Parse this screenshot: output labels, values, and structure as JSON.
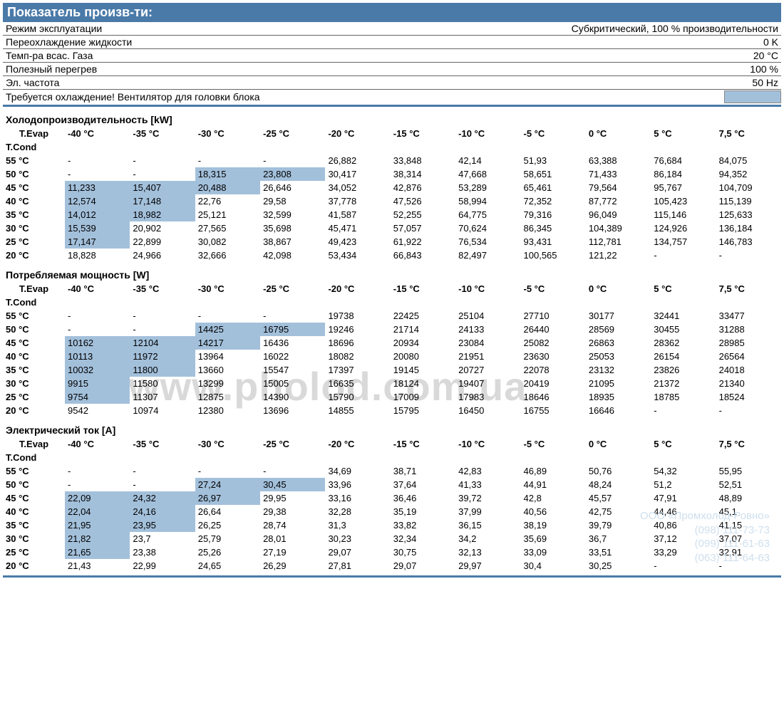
{
  "header": {
    "title": "Показатель произв-ти:"
  },
  "params": [
    {
      "label": "Режим эксплуатации",
      "value": "Субкритический, 100 % производительности"
    },
    {
      "label": "Переохлаждение жидкости",
      "value": "0 K"
    },
    {
      "label": "Темп-ра всас. Газа",
      "value": "20 °C"
    },
    {
      "label": "Полезный перегрев",
      "value": "100 %"
    },
    {
      "label": "Эл. частота",
      "value": "50 Hz"
    }
  ],
  "cooling_note": "Требуется охлаждение! Вентилятор для головки блока",
  "columns": [
    "-40 °C",
    "-35 °C",
    "-30 °C",
    "-25 °C",
    "-20 °C",
    "-15 °C",
    "-10 °C",
    "-5 °C",
    "0 °C",
    "5 °C",
    "7,5 °C"
  ],
  "row_labels": [
    "55 °C",
    "50 °C",
    "45 °C",
    "40 °C",
    "35 °C",
    "30 °C",
    "25 °C",
    "20 °C"
  ],
  "axis": {
    "evap": "T.Evap",
    "cond": "T.Cond"
  },
  "highlight_color": "#a3c0db",
  "sections": [
    {
      "title": "Холодопроизводительность [kW]",
      "rows": [
        [
          {
            "v": "-"
          },
          {
            "v": "-"
          },
          {
            "v": "-"
          },
          {
            "v": "-"
          },
          {
            "v": "26,882"
          },
          {
            "v": "33,848"
          },
          {
            "v": "42,14"
          },
          {
            "v": "51,93"
          },
          {
            "v": "63,388"
          },
          {
            "v": "76,684"
          },
          {
            "v": "84,075"
          }
        ],
        [
          {
            "v": "-"
          },
          {
            "v": "-"
          },
          {
            "v": "18,315",
            "hl": true
          },
          {
            "v": "23,808",
            "hl": true
          },
          {
            "v": "30,417"
          },
          {
            "v": "38,314"
          },
          {
            "v": "47,668"
          },
          {
            "v": "58,651"
          },
          {
            "v": "71,433"
          },
          {
            "v": "86,184"
          },
          {
            "v": "94,352"
          }
        ],
        [
          {
            "v": "11,233",
            "hl": true
          },
          {
            "v": "15,407",
            "hl": true
          },
          {
            "v": "20,488",
            "hl": true
          },
          {
            "v": "26,646"
          },
          {
            "v": "34,052"
          },
          {
            "v": "42,876"
          },
          {
            "v": "53,289"
          },
          {
            "v": "65,461"
          },
          {
            "v": "79,564"
          },
          {
            "v": "95,767"
          },
          {
            "v": "104,709"
          }
        ],
        [
          {
            "v": "12,574",
            "hl": true
          },
          {
            "v": "17,148",
            "hl": true
          },
          {
            "v": "22,76"
          },
          {
            "v": "29,58"
          },
          {
            "v": "37,778"
          },
          {
            "v": "47,526"
          },
          {
            "v": "58,994"
          },
          {
            "v": "72,352"
          },
          {
            "v": "87,772"
          },
          {
            "v": "105,423"
          },
          {
            "v": "115,139"
          }
        ],
        [
          {
            "v": "14,012",
            "hl": true
          },
          {
            "v": "18,982",
            "hl": true
          },
          {
            "v": "25,121"
          },
          {
            "v": "32,599"
          },
          {
            "v": "41,587"
          },
          {
            "v": "52,255"
          },
          {
            "v": "64,775"
          },
          {
            "v": "79,316"
          },
          {
            "v": "96,049"
          },
          {
            "v": "115,146"
          },
          {
            "v": "125,633"
          }
        ],
        [
          {
            "v": "15,539",
            "hl": true
          },
          {
            "v": "20,902"
          },
          {
            "v": "27,565"
          },
          {
            "v": "35,698"
          },
          {
            "v": "45,471"
          },
          {
            "v": "57,057"
          },
          {
            "v": "70,624"
          },
          {
            "v": "86,345"
          },
          {
            "v": "104,389"
          },
          {
            "v": "124,926"
          },
          {
            "v": "136,184"
          }
        ],
        [
          {
            "v": "17,147",
            "hl": true
          },
          {
            "v": "22,899"
          },
          {
            "v": "30,082"
          },
          {
            "v": "38,867"
          },
          {
            "v": "49,423"
          },
          {
            "v": "61,922"
          },
          {
            "v": "76,534"
          },
          {
            "v": "93,431"
          },
          {
            "v": "112,781"
          },
          {
            "v": "134,757"
          },
          {
            "v": "146,783"
          }
        ],
        [
          {
            "v": "18,828"
          },
          {
            "v": "24,966"
          },
          {
            "v": "32,666"
          },
          {
            "v": "42,098"
          },
          {
            "v": "53,434"
          },
          {
            "v": "66,843"
          },
          {
            "v": "82,497"
          },
          {
            "v": "100,565"
          },
          {
            "v": "121,22"
          },
          {
            "v": "-"
          },
          {
            "v": "-"
          }
        ]
      ]
    },
    {
      "title": "Потребляемая мощность [W]",
      "rows": [
        [
          {
            "v": "-"
          },
          {
            "v": "-"
          },
          {
            "v": "-"
          },
          {
            "v": "-"
          },
          {
            "v": "19738"
          },
          {
            "v": "22425"
          },
          {
            "v": "25104"
          },
          {
            "v": "27710"
          },
          {
            "v": "30177"
          },
          {
            "v": "32441"
          },
          {
            "v": "33477"
          }
        ],
        [
          {
            "v": "-"
          },
          {
            "v": "-"
          },
          {
            "v": "14425",
            "hl": true
          },
          {
            "v": "16795",
            "hl": true
          },
          {
            "v": "19246"
          },
          {
            "v": "21714"
          },
          {
            "v": "24133"
          },
          {
            "v": "26440"
          },
          {
            "v": "28569"
          },
          {
            "v": "30455"
          },
          {
            "v": "31288"
          }
        ],
        [
          {
            "v": "10162",
            "hl": true
          },
          {
            "v": "12104",
            "hl": true
          },
          {
            "v": "14217",
            "hl": true
          },
          {
            "v": "16436"
          },
          {
            "v": "18696"
          },
          {
            "v": "20934"
          },
          {
            "v": "23084"
          },
          {
            "v": "25082"
          },
          {
            "v": "26863"
          },
          {
            "v": "28362"
          },
          {
            "v": "28985"
          }
        ],
        [
          {
            "v": "10113",
            "hl": true
          },
          {
            "v": "11972",
            "hl": true
          },
          {
            "v": "13964"
          },
          {
            "v": "16022"
          },
          {
            "v": "18082"
          },
          {
            "v": "20080"
          },
          {
            "v": "21951"
          },
          {
            "v": "23630"
          },
          {
            "v": "25053"
          },
          {
            "v": "26154"
          },
          {
            "v": "26564"
          }
        ],
        [
          {
            "v": "10032",
            "hl": true
          },
          {
            "v": "11800",
            "hl": true
          },
          {
            "v": "13660"
          },
          {
            "v": "15547"
          },
          {
            "v": "17397"
          },
          {
            "v": "19145"
          },
          {
            "v": "20727"
          },
          {
            "v": "22078"
          },
          {
            "v": "23132"
          },
          {
            "v": "23826"
          },
          {
            "v": "24018"
          }
        ],
        [
          {
            "v": "9915",
            "hl": true
          },
          {
            "v": "11580"
          },
          {
            "v": "13299"
          },
          {
            "v": "15005"
          },
          {
            "v": "16635"
          },
          {
            "v": "18124"
          },
          {
            "v": "19407"
          },
          {
            "v": "20419"
          },
          {
            "v": "21095"
          },
          {
            "v": "21372"
          },
          {
            "v": "21340"
          }
        ],
        [
          {
            "v": "9754",
            "hl": true
          },
          {
            "v": "11307"
          },
          {
            "v": "12875"
          },
          {
            "v": "14390"
          },
          {
            "v": "15790"
          },
          {
            "v": "17009"
          },
          {
            "v": "17983"
          },
          {
            "v": "18646"
          },
          {
            "v": "18935"
          },
          {
            "v": "18785"
          },
          {
            "v": "18524"
          }
        ],
        [
          {
            "v": "9542"
          },
          {
            "v": "10974"
          },
          {
            "v": "12380"
          },
          {
            "v": "13696"
          },
          {
            "v": "14855"
          },
          {
            "v": "15795"
          },
          {
            "v": "16450"
          },
          {
            "v": "16755"
          },
          {
            "v": "16646"
          },
          {
            "v": "-"
          },
          {
            "v": "-"
          }
        ]
      ]
    },
    {
      "title": "Электрический ток [A]",
      "rows": [
        [
          {
            "v": "-"
          },
          {
            "v": "-"
          },
          {
            "v": "-"
          },
          {
            "v": "-"
          },
          {
            "v": "34,69"
          },
          {
            "v": "38,71"
          },
          {
            "v": "42,83"
          },
          {
            "v": "46,89"
          },
          {
            "v": "50,76"
          },
          {
            "v": "54,32"
          },
          {
            "v": "55,95"
          }
        ],
        [
          {
            "v": "-"
          },
          {
            "v": "-"
          },
          {
            "v": "27,24",
            "hl": true
          },
          {
            "v": "30,45",
            "hl": true
          },
          {
            "v": "33,96"
          },
          {
            "v": "37,64"
          },
          {
            "v": "41,33"
          },
          {
            "v": "44,91"
          },
          {
            "v": "48,24"
          },
          {
            "v": "51,2"
          },
          {
            "v": "52,51"
          }
        ],
        [
          {
            "v": "22,09",
            "hl": true
          },
          {
            "v": "24,32",
            "hl": true
          },
          {
            "v": "26,97",
            "hl": true
          },
          {
            "v": "29,95"
          },
          {
            "v": "33,16"
          },
          {
            "v": "36,46"
          },
          {
            "v": "39,72"
          },
          {
            "v": "42,8"
          },
          {
            "v": "45,57"
          },
          {
            "v": "47,91"
          },
          {
            "v": "48,89"
          }
        ],
        [
          {
            "v": "22,04",
            "hl": true
          },
          {
            "v": "24,16",
            "hl": true
          },
          {
            "v": "26,64"
          },
          {
            "v": "29,38"
          },
          {
            "v": "32,28"
          },
          {
            "v": "35,19"
          },
          {
            "v": "37,99"
          },
          {
            "v": "40,56"
          },
          {
            "v": "42,75"
          },
          {
            "v": "44,46"
          },
          {
            "v": "45,1"
          }
        ],
        [
          {
            "v": "21,95",
            "hl": true
          },
          {
            "v": "23,95",
            "hl": true
          },
          {
            "v": "26,25"
          },
          {
            "v": "28,74"
          },
          {
            "v": "31,3"
          },
          {
            "v": "33,82"
          },
          {
            "v": "36,15"
          },
          {
            "v": "38,19"
          },
          {
            "v": "39,79"
          },
          {
            "v": "40,86"
          },
          {
            "v": "41,15"
          }
        ],
        [
          {
            "v": "21,82",
            "hl": true
          },
          {
            "v": "23,7"
          },
          {
            "v": "25,79"
          },
          {
            "v": "28,01"
          },
          {
            "v": "30,23"
          },
          {
            "v": "32,34"
          },
          {
            "v": "34,2"
          },
          {
            "v": "35,69"
          },
          {
            "v": "36,7"
          },
          {
            "v": "37,12"
          },
          {
            "v": "37,07"
          }
        ],
        [
          {
            "v": "21,65",
            "hl": true
          },
          {
            "v": "23,38"
          },
          {
            "v": "25,26"
          },
          {
            "v": "27,19"
          },
          {
            "v": "29,07"
          },
          {
            "v": "30,75"
          },
          {
            "v": "32,13"
          },
          {
            "v": "33,09"
          },
          {
            "v": "33,51"
          },
          {
            "v": "33,29"
          },
          {
            "v": "32,91"
          }
        ],
        [
          {
            "v": "21,43"
          },
          {
            "v": "22,99"
          },
          {
            "v": "24,65"
          },
          {
            "v": "26,29"
          },
          {
            "v": "27,81"
          },
          {
            "v": "29,07"
          },
          {
            "v": "29,97"
          },
          {
            "v": "30,4"
          },
          {
            "v": "30,25"
          },
          {
            "v": "-"
          },
          {
            "v": "-"
          }
        ]
      ]
    }
  ],
  "watermark": "www.pholod.com.ua",
  "company": {
    "name": "ООО «Промхолод-Ровно»",
    "phones": [
      "(098) 111-73-73",
      "(099) 111-61-63",
      "(063) 111-64-63"
    ]
  }
}
